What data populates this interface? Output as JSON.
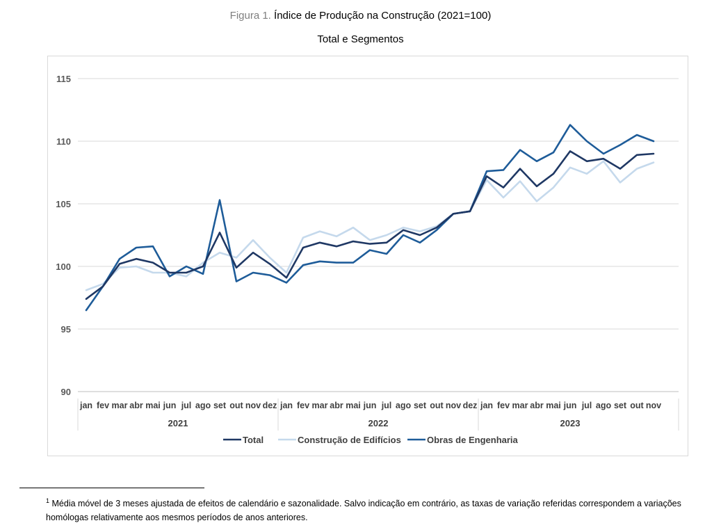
{
  "figure": {
    "label": "Figura 1.",
    "title": "Índice de Produção na Construção (2021=100)",
    "subtitle": "Total e Segmentos"
  },
  "footnote": {
    "marker": "1",
    "text": "Média móvel de 3 meses ajustada de efeitos de calendário e sazonalidade. Salvo indicação em contrário, as taxas de variação referidas correspondem a variações homólogas relativamente aos mesmos períodos de anos anteriores."
  },
  "chart_data": {
    "type": "line",
    "title": "Índice de Produção na Construção (2021=100)",
    "subtitle": "Total e Segmentos",
    "x": [
      "jan 2021",
      "fev 2021",
      "mar 2021",
      "abr 2021",
      "mai 2021",
      "jun 2021",
      "jul 2021",
      "ago 2021",
      "set 2021",
      "out 2021",
      "nov 2021",
      "dez 2021",
      "jan 2022",
      "fev 2022",
      "mar 2022",
      "abr 2022",
      "mai 2022",
      "jun 2022",
      "jul 2022",
      "ago 2022",
      "set 2022",
      "out 2022",
      "nov 2022",
      "dez 2022",
      "jan 2023",
      "fev 2023",
      "mar 2023",
      "abr 2023",
      "mai 2023",
      "jun 2023",
      "jul 2023",
      "ago 2023",
      "set 2023",
      "out 2023",
      "nov 2023"
    ],
    "month_labels": [
      "jan",
      "fev",
      "mar",
      "abr",
      "mai",
      "jun",
      "jul",
      "ago",
      "set",
      "out",
      "nov",
      "dez"
    ],
    "years": [
      "2021",
      "2022",
      "2023"
    ],
    "ylim": [
      90,
      115
    ],
    "yticks": [
      90,
      95,
      100,
      105,
      110,
      115
    ],
    "grid": true,
    "legend_position": "bottom",
    "series": [
      {
        "name": "Total",
        "color": "#1f3864",
        "values": [
          97.4,
          98.4,
          100.2,
          100.6,
          100.3,
          99.5,
          99.5,
          100.0,
          102.7,
          99.9,
          101.1,
          100.2,
          99.1,
          101.5,
          101.9,
          101.6,
          102.0,
          101.8,
          101.9,
          102.9,
          102.5,
          103.1,
          104.2,
          104.4,
          107.2,
          106.3,
          107.8,
          106.4,
          107.4,
          109.2,
          108.4,
          108.6,
          107.8,
          108.9,
          109.0
        ]
      },
      {
        "name": "Construção de Edifícios",
        "color": "#c5d9ec",
        "values": [
          98.1,
          98.6,
          99.9,
          100.0,
          99.5,
          99.5,
          99.2,
          100.3,
          101.1,
          100.7,
          102.1,
          100.7,
          99.5,
          102.3,
          102.8,
          102.4,
          103.1,
          102.1,
          102.5,
          103.1,
          102.8,
          103.2,
          104.2,
          104.4,
          106.9,
          105.5,
          106.8,
          105.2,
          106.3,
          107.9,
          107.4,
          108.4,
          106.7,
          107.8,
          108.3
        ]
      },
      {
        "name": "Obras de Engenharia",
        "color": "#1e5c99",
        "values": [
          96.5,
          98.4,
          100.6,
          101.5,
          101.6,
          99.2,
          100.0,
          99.4,
          105.3,
          98.8,
          99.5,
          99.3,
          98.7,
          100.1,
          100.4,
          100.3,
          100.3,
          101.3,
          101.0,
          102.5,
          101.9,
          102.9,
          104.2,
          104.4,
          107.6,
          107.7,
          109.3,
          108.4,
          109.1,
          111.3,
          110.0,
          109.0,
          109.7,
          110.5,
          110.0
        ]
      }
    ]
  }
}
